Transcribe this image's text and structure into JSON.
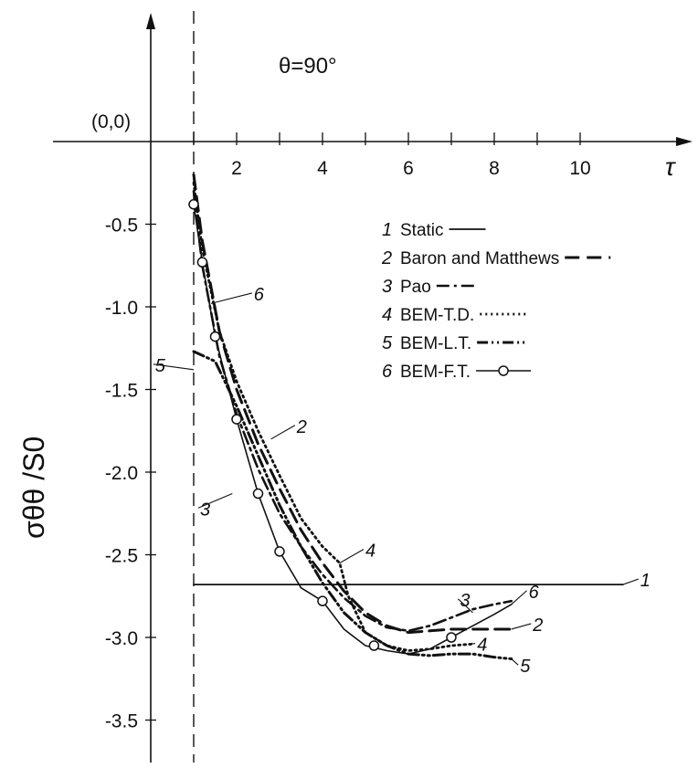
{
  "chart_data": {
    "type": "line",
    "title": "θ=90°",
    "origin_label": "(0,0)",
    "xlabel": "τ",
    "ylabel": "σθθ /S0",
    "x_ticks": [
      "2",
      "4",
      "6",
      "8",
      "10"
    ],
    "y_ticks": [
      "-0.5",
      "-1.0",
      "-1.5",
      "-2.0",
      "-2.5",
      "-3.0",
      "-3.5"
    ],
    "xlim": [
      0,
      12.5
    ],
    "ylim": [
      -3.75,
      0
    ],
    "grid": false,
    "legend_position": "top-right",
    "reference_line_x": 1.0,
    "series": [
      {
        "name": "Static",
        "number": "1",
        "style": "solid",
        "x": [
          1.0,
          11.0
        ],
        "y": [
          -2.68,
          -2.68
        ]
      },
      {
        "name": "Baron and Matthews",
        "number": "2",
        "style": "long-dash",
        "x": [
          1.0,
          1.2,
          1.6,
          2.0,
          2.5,
          3.0,
          3.5,
          4.0,
          4.5,
          5.0,
          5.5,
          6.0,
          6.5,
          7.0,
          7.5,
          8.0,
          8.4
        ],
        "y": [
          -0.2,
          -0.6,
          -1.15,
          -1.5,
          -1.83,
          -2.1,
          -2.35,
          -2.55,
          -2.72,
          -2.85,
          -2.93,
          -2.97,
          -2.96,
          -2.95,
          -2.95,
          -2.95,
          -2.95
        ]
      },
      {
        "name": "Pao",
        "number": "3",
        "style": "dash-dot",
        "x": [
          1.0,
          1.2,
          1.6,
          2.0,
          2.5,
          3.0,
          3.5,
          4.0,
          4.5,
          5.0,
          5.5,
          6.0,
          6.5,
          7.0,
          7.5,
          8.0,
          8.4
        ],
        "y": [
          -0.3,
          -0.75,
          -1.3,
          -1.65,
          -1.98,
          -2.25,
          -2.45,
          -2.62,
          -2.76,
          -2.87,
          -2.94,
          -2.96,
          -2.93,
          -2.88,
          -2.83,
          -2.8,
          -2.78
        ]
      },
      {
        "name": "BEM-T.D.",
        "number": "4",
        "style": "dotted",
        "x": [
          1.0,
          1.2,
          1.6,
          2.0,
          2.5,
          3.0,
          3.5,
          4.0,
          4.4,
          4.6,
          5.0,
          5.5,
          6.0,
          6.5,
          7.0,
          7.5
        ],
        "y": [
          -0.25,
          -0.65,
          -1.15,
          -1.45,
          -1.75,
          -2.02,
          -2.28,
          -2.45,
          -2.55,
          -2.75,
          -2.97,
          -3.05,
          -3.08,
          -3.07,
          -3.05,
          -3.04
        ]
      },
      {
        "name": "BEM-L.T.",
        "number": "5",
        "style": "dash-dot-dot",
        "x": [
          1.0,
          1.5,
          2.0,
          2.5,
          3.0,
          3.5,
          4.0,
          4.5,
          5.0,
          5.5,
          6.0,
          6.5,
          7.0,
          7.5,
          8.0,
          8.4
        ],
        "y": [
          -1.27,
          -1.33,
          -1.6,
          -1.9,
          -2.2,
          -2.45,
          -2.67,
          -2.85,
          -2.97,
          -3.05,
          -3.1,
          -3.11,
          -3.1,
          -3.1,
          -3.12,
          -3.13
        ]
      },
      {
        "name": "BEM-F.T.",
        "number": "6",
        "style": "solid-with-circles",
        "x": [
          1.0,
          1.2,
          1.5,
          2.0,
          2.5,
          3.0,
          3.5,
          4.0,
          4.5,
          5.0,
          5.5,
          6.0,
          6.5,
          7.0,
          7.5,
          8.0,
          8.4
        ],
        "y": [
          -0.38,
          -0.73,
          -1.18,
          -1.68,
          -2.13,
          -2.48,
          -2.7,
          -2.78,
          -2.95,
          -3.05,
          -3.08,
          -3.1,
          -3.07,
          -3.0,
          -2.93,
          -2.86,
          -2.8
        ],
        "marker_x": [
          1.0,
          1.2,
          1.5,
          2.0,
          2.5,
          3.0,
          4.0,
          5.2,
          7.0
        ],
        "marker_y": [
          -0.38,
          -0.73,
          -1.18,
          -1.68,
          -2.13,
          -2.48,
          -2.78,
          -3.05,
          -3.0
        ]
      }
    ]
  }
}
